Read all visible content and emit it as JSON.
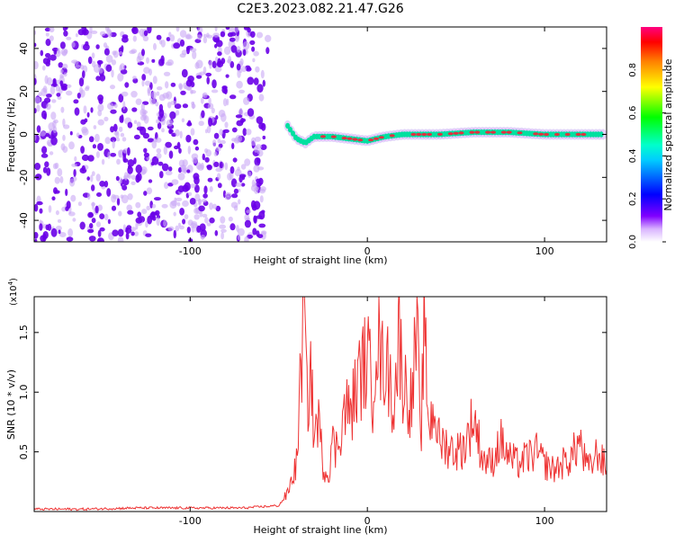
{
  "title": "C2E3.2023.082.21.47.G26",
  "chart_data": [
    {
      "type": "heatmap",
      "xlabel": "Height of straight line (km)",
      "ylabel": "Frequency (Hz)",
      "xlim": [
        -188,
        135
      ],
      "ylim": [
        -50,
        50
      ],
      "xticks": [
        "-100",
        "0",
        "100"
      ],
      "yticks": [
        "40",
        "20",
        "0",
        "-20",
        "-40"
      ],
      "colorbar": {
        "label": "Normalized spectral amplitude",
        "ticks": [
          "0.0",
          "0.2",
          "0.4",
          "0.6",
          "0.8"
        ],
        "range": [
          0,
          1
        ]
      },
      "colors": {
        "noise": "#6a00e8",
        "noise_light": "#c9a8f5",
        "mid": "#00e0a0",
        "high": "#e03040"
      },
      "track": [
        {
          "x": -45,
          "f": 4
        },
        {
          "x": -40,
          "f": -2
        },
        {
          "x": -35,
          "f": -4
        },
        {
          "x": -30,
          "f": -1
        },
        {
          "x": -20,
          "f": -1
        },
        {
          "x": -10,
          "f": -2
        },
        {
          "x": 0,
          "f": -3
        },
        {
          "x": 10,
          "f": -1
        },
        {
          "x": 20,
          "f": 0
        },
        {
          "x": 40,
          "f": 0
        },
        {
          "x": 60,
          "f": 1
        },
        {
          "x": 80,
          "f": 1
        },
        {
          "x": 100,
          "f": 0
        },
        {
          "x": 120,
          "f": 0
        },
        {
          "x": 133,
          "f": 0
        }
      ]
    },
    {
      "type": "line",
      "xlabel": "Height of straight line (km)",
      "ylabel": "SNR (10 * v/v)",
      "scale_note": "(x10",
      "scale_exp": "4",
      "scale_close": ")",
      "xlim": [
        -188,
        135
      ],
      "ylim": [
        0,
        1.8
      ],
      "xticks": [
        "-100",
        "0",
        "100"
      ],
      "yticks": [
        "1.5",
        "1.0",
        "0.5"
      ],
      "color": "#ee3333",
      "series": [
        {
          "x": [
            -188,
            -160,
            -130,
            -100,
            -70,
            -50,
            -45,
            -40,
            -38,
            -36,
            -35,
            -34,
            -32,
            -30,
            -28,
            -25,
            -22,
            -20,
            -18,
            -15,
            -12,
            -10,
            -5,
            0,
            3,
            5,
            8,
            10,
            15,
            18,
            20,
            25,
            28,
            30,
            32,
            35,
            38,
            40,
            45,
            50,
            55,
            60,
            65,
            70,
            75,
            80,
            85,
            90,
            95,
            100,
            105,
            110,
            115,
            120,
            122,
            125,
            130,
            135
          ],
          "y": [
            0.02,
            0.02,
            0.03,
            0.03,
            0.03,
            0.05,
            0.15,
            0.4,
            1.0,
            1.7,
            1.4,
            0.9,
            1.2,
            0.6,
            0.8,
            0.4,
            0.3,
            0.6,
            0.5,
            0.7,
            0.9,
            0.8,
            1.1,
            1.3,
            1.0,
            1.55,
            1.2,
            1.3,
            0.9,
            1.5,
            1.1,
            0.9,
            1.55,
            0.5,
            1.5,
            0.7,
            0.9,
            0.6,
            0.55,
            0.5,
            0.55,
            0.8,
            0.45,
            0.4,
            0.6,
            0.45,
            0.4,
            0.45,
            0.5,
            0.4,
            0.35,
            0.4,
            0.45,
            0.6,
            0.45,
            0.35,
            0.5,
            0.35
          ]
        }
      ]
    }
  ]
}
